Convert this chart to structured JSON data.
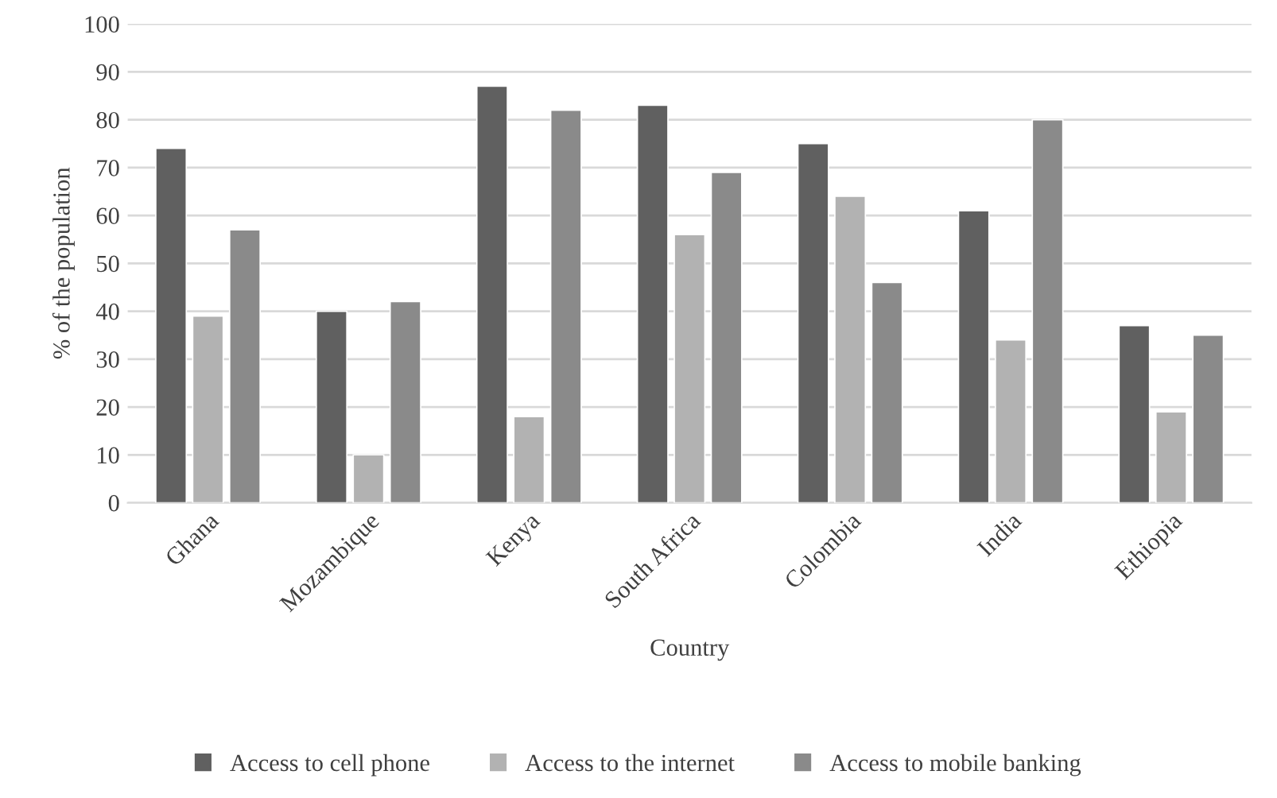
{
  "chart_data": {
    "type": "bar",
    "xlabel": "Country",
    "ylabel": "% of the population",
    "categories": [
      "Ghana",
      "Mozambique",
      "Kenya",
      "South Africa",
      "Colombia",
      "India",
      "Ethiopia"
    ],
    "series": [
      {
        "name": "Access to cell phone",
        "color": "#606060",
        "values": [
          74,
          40,
          87,
          83,
          75,
          61,
          37
        ]
      },
      {
        "name": "Access to the internet",
        "color": "#b2b2b2",
        "values": [
          39,
          10,
          18,
          56,
          64,
          34,
          19
        ]
      },
      {
        "name": "Access to mobile banking",
        "color": "#8a8a8a",
        "values": [
          57,
          42,
          82,
          69,
          46,
          80,
          35
        ]
      }
    ],
    "ylim": [
      0,
      100
    ],
    "yticks": [
      0,
      10,
      20,
      30,
      40,
      50,
      60,
      70,
      80,
      90,
      100
    ],
    "grid": "y",
    "legend": "bottom"
  }
}
